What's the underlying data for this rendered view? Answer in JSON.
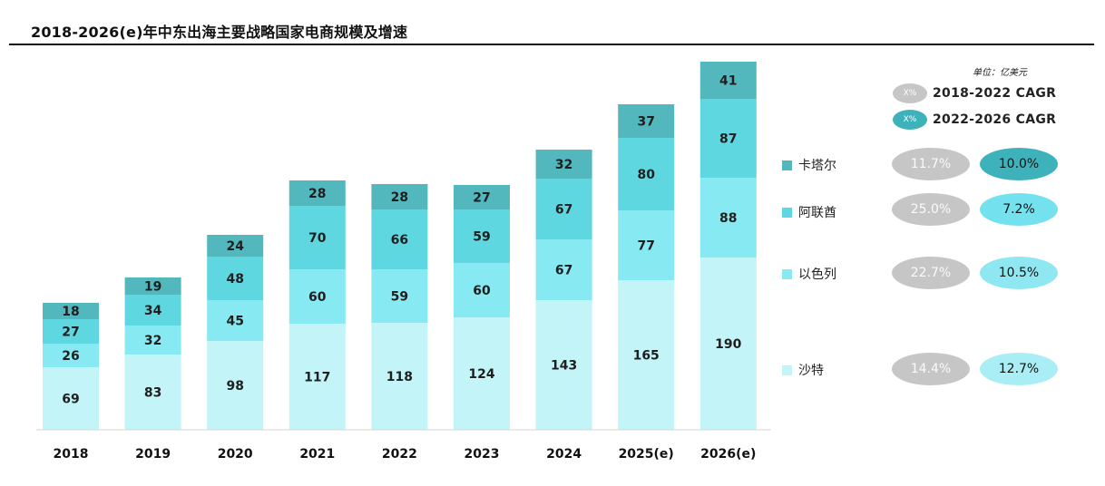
{
  "title": "2018-2026(e)年中东出海主要战略国家电商规模及增速",
  "unit": "单位：亿美元",
  "cagr_key": {
    "badge_text": "X%",
    "period1": "2018-2022 CAGR",
    "period2": "2022-2026 CAGR"
  },
  "colors": {
    "沙特": "#c2f4f8",
    "以色列": "#87e9f2",
    "阿联酋": "#5ed7e1",
    "卡塔尔": "#52b8be",
    "cagr_old": "#c6c6c6",
    "cagr_new_dark": "#3eb2bb",
    "cagr_new": "#74e2ee",
    "cagr_new_light": "#aaeef5"
  },
  "chart_data": {
    "type": "bar",
    "stacked": true,
    "categories": [
      "2018",
      "2019",
      "2020",
      "2021",
      "2022",
      "2023",
      "2024",
      "2025(e)",
      "2026(e)"
    ],
    "series": [
      {
        "name": "沙特",
        "values": [
          69,
          83,
          98,
          117,
          118,
          124,
          143,
          165,
          190
        ]
      },
      {
        "name": "以色列",
        "values": [
          26,
          32,
          45,
          60,
          59,
          60,
          67,
          77,
          88
        ]
      },
      {
        "name": "阿联酋",
        "values": [
          27,
          34,
          48,
          70,
          66,
          59,
          67,
          80,
          87
        ]
      },
      {
        "name": "卡塔尔",
        "values": [
          18,
          19,
          24,
          28,
          28,
          27,
          32,
          37,
          41
        ]
      }
    ],
    "legend_order": [
      "卡塔尔",
      "阿联酋",
      "以色列",
      "沙特"
    ],
    "cagr": {
      "卡塔尔": {
        "2018-2022": "11.7%",
        "2022-2026": "10.0%"
      },
      "阿联酋": {
        "2018-2022": "25.0%",
        "2022-2026": "7.2%"
      },
      "以色列": {
        "2018-2022": "22.7%",
        "2022-2026": "10.5%"
      },
      "沙特": {
        "2018-2022": "14.4%",
        "2022-2026": "12.7%"
      }
    },
    "grid": false,
    "legend_position": "right"
  }
}
